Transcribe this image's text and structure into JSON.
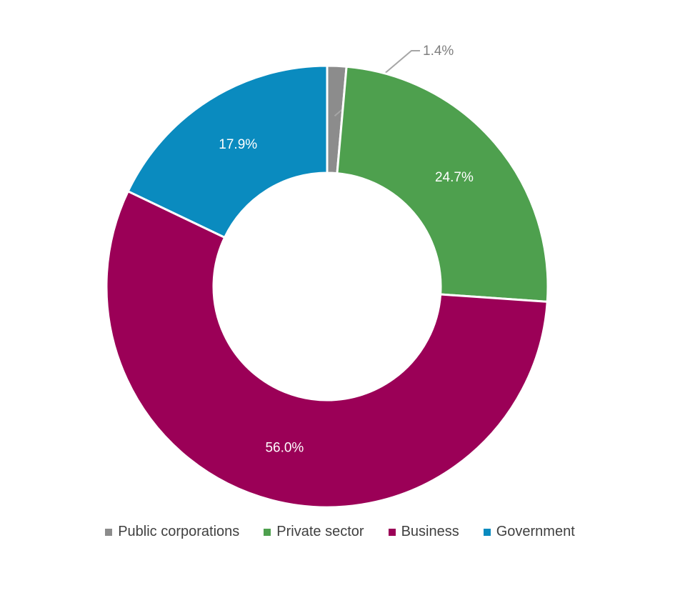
{
  "chart_data": {
    "type": "pie",
    "variant": "donut",
    "title": "",
    "slices": [
      {
        "label": "Public corporations",
        "value": 1.4,
        "value_label": "1.4%",
        "color": "#8c8c8c"
      },
      {
        "label": "Private sector",
        "value": 24.7,
        "value_label": "24.7%",
        "color": "#4ea04e"
      },
      {
        "label": "Business",
        "value": 56.0,
        "value_label": "56.0%",
        "color": "#9b0057"
      },
      {
        "label": "Government",
        "value": 17.9,
        "value_label": "17.9%",
        "color": "#0a8bbf"
      }
    ],
    "start_angle": "12 o'clock",
    "direction": "clockwise",
    "legend_position": "bottom"
  }
}
